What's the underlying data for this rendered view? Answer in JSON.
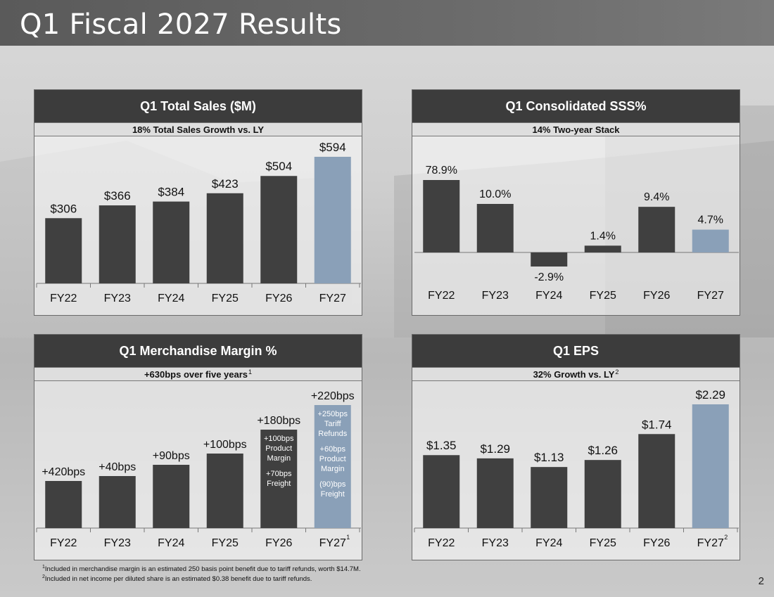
{
  "page": {
    "title": "Q1 Fiscal 2027 Results",
    "page_number": "2",
    "colors": {
      "bar_dark": "#404040",
      "bar_highlight": "#8aa0b8",
      "header_bg": "#3c3c3c"
    }
  },
  "footnotes": {
    "note1_marker": "1",
    "note1_text": "Included in merchandise margin is an estimated 250 basis point benefit due to tariff refunds, worth $14.7M.",
    "note2_marker": "2",
    "note2_text": "Included in net income per diluted share is an estimated $0.38 benefit due to tariff refunds."
  },
  "panels": {
    "sales": {
      "title": "Q1 Total Sales ($M)",
      "subtitle": "18% Total Sales Growth vs. LY"
    },
    "sss": {
      "title": "Q1 Consolidated SSS%",
      "subtitle": "14% Two-year Stack"
    },
    "margin": {
      "title": "Q1 Merchandise Margin %",
      "subtitle": "+630bps over five years",
      "subtitle_marker": "1"
    },
    "eps": {
      "title": "Q1 EPS",
      "subtitle": "32% Growth vs. LY",
      "subtitle_marker": "2"
    }
  },
  "chart_data": [
    {
      "id": "sales",
      "type": "bar",
      "categories": [
        "FY22",
        "FY23",
        "FY24",
        "FY25",
        "FY26",
        "FY27"
      ],
      "values": [
        306,
        366,
        384,
        423,
        504,
        594
      ],
      "labels": [
        "$306",
        "$366",
        "$384",
        "$423",
        "$504",
        "$594"
      ],
      "highlight_index": 5,
      "ylim": [
        0,
        650
      ]
    },
    {
      "id": "sss",
      "type": "bar",
      "categories": [
        "FY22",
        "FY23",
        "FY24",
        "FY25",
        "FY26",
        "FY27"
      ],
      "values": [
        78.9,
        10.0,
        -2.9,
        1.4,
        9.4,
        4.7
      ],
      "labels": [
        "78.9%",
        "10.0%",
        "-2.9%",
        "1.4%",
        "9.4%",
        "4.7%"
      ],
      "highlight_index": 5,
      "scale_note": "axis broken; bars not drawn to linear scale"
    },
    {
      "id": "margin",
      "type": "bar",
      "categories": [
        "FY22",
        "FY23",
        "FY24",
        "FY25",
        "FY26",
        "FY27"
      ],
      "values": [
        420,
        40,
        90,
        100,
        180,
        220
      ],
      "labels": [
        "+420bps",
        "+40bps",
        "+90bps",
        "+100bps",
        "+180bps",
        "+220bps"
      ],
      "highlight_index": 5,
      "category_markers": [
        "",
        "",
        "",
        "",
        "",
        "1"
      ],
      "bar_annotations": {
        "4": [
          "+100bps",
          "Product",
          "Margin",
          "",
          "+70bps",
          "Freight"
        ],
        "5": [
          "+250bps",
          "Tariff",
          "Refunds",
          "",
          "+60bps",
          "Product",
          "Margin",
          "",
          "(90)bps",
          "Freight"
        ]
      }
    },
    {
      "id": "eps",
      "type": "bar",
      "categories": [
        "FY22",
        "FY23",
        "FY24",
        "FY25",
        "FY26",
        "FY27"
      ],
      "values": [
        1.35,
        1.29,
        1.13,
        1.26,
        1.74,
        2.29
      ],
      "labels": [
        "$1.35",
        "$1.29",
        "$1.13",
        "$1.26",
        "$1.74",
        "$2.29"
      ],
      "highlight_index": 5,
      "category_markers": [
        "",
        "",
        "",
        "",
        "",
        "2"
      ]
    }
  ]
}
